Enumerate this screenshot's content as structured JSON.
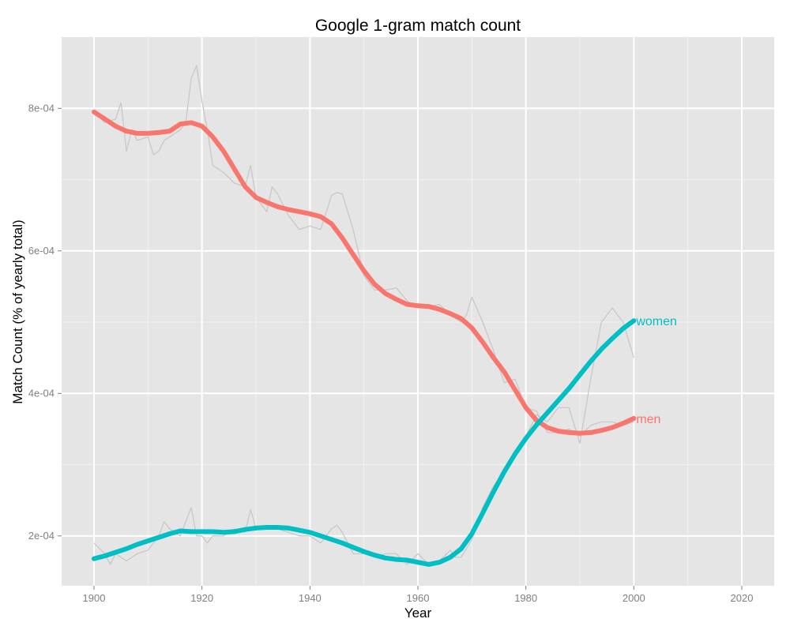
{
  "chart_data": {
    "type": "line",
    "title": "Google 1-gram match count",
    "xlabel": "Year",
    "ylabel": "Match Count (% of yearly total)",
    "xlim": [
      1894,
      2026
    ],
    "ylim": [
      0.00013,
      0.0009
    ],
    "x_ticks": [
      1900,
      1920,
      1940,
      1960,
      1980,
      2000,
      2020
    ],
    "x_tick_labels": [
      "1900",
      "1920",
      "1940",
      "1960",
      "1980",
      "2000",
      "2020"
    ],
    "y_ticks": [
      0.0002,
      0.0004,
      0.0006,
      0.0008
    ],
    "y_tick_labels": [
      "2e-04",
      "4e-04",
      "6e-04",
      "8e-04"
    ],
    "grid": true,
    "legend": "none",
    "colors": {
      "panel_background": "#e5e5e5",
      "grid_major": "#ffffff",
      "grid_minor": "#f2f2f2",
      "raw_line": "#c8c8c8",
      "men": "#f8766d",
      "women": "#00bfc4"
    },
    "raw_series": [
      {
        "group": "men",
        "x": [
          1900,
          1902,
          1904,
          1905,
          1906,
          1907,
          1908,
          1910,
          1911,
          1912,
          1913,
          1914,
          1916,
          1917,
          1918,
          1919,
          1920,
          1921,
          1922,
          1924,
          1926,
          1928,
          1929,
          1930,
          1932,
          1933,
          1934,
          1936,
          1938,
          1940,
          1942,
          1944,
          1945,
          1946,
          1948,
          1950,
          1952,
          1954,
          1956,
          1958,
          1960,
          1962,
          1964,
          1966,
          1968,
          1969,
          1970,
          1972,
          1974,
          1976,
          1978,
          1980,
          1982,
          1984,
          1986,
          1988,
          1990,
          1992,
          1994,
          1996,
          1998,
          2000
        ],
        "y": [
          0.000795,
          0.00078,
          0.000785,
          0.000808,
          0.00074,
          0.00077,
          0.000755,
          0.00076,
          0.000735,
          0.00074,
          0.000755,
          0.00076,
          0.00077,
          0.00078,
          0.000842,
          0.00086,
          0.00081,
          0.00077,
          0.00072,
          0.00071,
          0.000695,
          0.00069,
          0.00072,
          0.000675,
          0.000655,
          0.00069,
          0.00068,
          0.00065,
          0.00063,
          0.000635,
          0.00063,
          0.000678,
          0.000682,
          0.00068,
          0.00063,
          0.000565,
          0.000545,
          0.000545,
          0.000548,
          0.00053,
          0.00052,
          0.000522,
          0.000525,
          0.00051,
          0.0005,
          0.00051,
          0.000535,
          0.0005,
          0.00046,
          0.000415,
          0.00042,
          0.00038,
          0.000375,
          0.000345,
          0.000345,
          0.00035,
          0.00034,
          0.000355,
          0.00036,
          0.00036,
          0.000355,
          0.00036
        ]
      },
      {
        "group": "women",
        "x": [
          1900,
          1902,
          1903,
          1904,
          1906,
          1908,
          1910,
          1912,
          1913,
          1914,
          1916,
          1918,
          1919,
          1920,
          1921,
          1922,
          1924,
          1926,
          1928,
          1929,
          1930,
          1932,
          1934,
          1936,
          1938,
          1940,
          1942,
          1944,
          1945,
          1946,
          1948,
          1950,
          1952,
          1954,
          1956,
          1958,
          1960,
          1962,
          1964,
          1966,
          1967,
          1968,
          1970,
          1972,
          1974,
          1976,
          1978,
          1980,
          1982,
          1984,
          1986,
          1988,
          1990,
          1992,
          1994,
          1995,
          1996,
          1998,
          2000
        ],
        "y": [
          0.00019,
          0.000175,
          0.00016,
          0.000175,
          0.000165,
          0.000175,
          0.00018,
          0.0002,
          0.00022,
          0.00021,
          0.0002,
          0.00024,
          0.0002,
          0.0002,
          0.00019,
          0.0002,
          0.0002,
          0.00021,
          0.000205,
          0.000237,
          0.00021,
          0.000215,
          0.00021,
          0.000205,
          0.0002,
          0.0002,
          0.00019,
          0.00021,
          0.000215,
          0.000205,
          0.000175,
          0.000175,
          0.00017,
          0.000175,
          0.000175,
          0.00016,
          0.000175,
          0.00016,
          0.000165,
          0.00018,
          0.00017,
          0.00017,
          0.000195,
          0.00024,
          0.00027,
          0.00029,
          0.00031,
          0.00034,
          0.00037,
          0.00036,
          0.00038,
          0.00038,
          0.00033,
          0.00042,
          0.0005,
          0.00051,
          0.00052,
          0.0005,
          0.00045
        ]
      }
    ],
    "series": [
      {
        "name": "men",
        "color": "#f8766d",
        "x": [
          1900,
          1902,
          1904,
          1906,
          1908,
          1910,
          1912,
          1914,
          1916,
          1918,
          1920,
          1922,
          1924,
          1926,
          1928,
          1930,
          1932,
          1934,
          1936,
          1938,
          1940,
          1942,
          1944,
          1946,
          1948,
          1950,
          1952,
          1954,
          1956,
          1958,
          1960,
          1962,
          1964,
          1966,
          1968,
          1970,
          1972,
          1974,
          1976,
          1978,
          1980,
          1982,
          1984,
          1986,
          1988,
          1990,
          1992,
          1994,
          1996,
          1998,
          2000
        ],
        "y": [
          0.000795,
          0.000785,
          0.000775,
          0.000768,
          0.000765,
          0.000765,
          0.000766,
          0.000768,
          0.000778,
          0.00078,
          0.000775,
          0.00076,
          0.00074,
          0.000715,
          0.00069,
          0.000675,
          0.000668,
          0.000662,
          0.000658,
          0.000655,
          0.000652,
          0.000648,
          0.000638,
          0.000618,
          0.000595,
          0.000572,
          0.000553,
          0.00054,
          0.000532,
          0.000525,
          0.000523,
          0.000522,
          0.000518,
          0.000512,
          0.000505,
          0.000492,
          0.000472,
          0.00045,
          0.00043,
          0.000405,
          0.00038,
          0.000362,
          0.000352,
          0.000347,
          0.000345,
          0.000344,
          0.000345,
          0.000348,
          0.000352,
          0.000358,
          0.000365
        ]
      },
      {
        "name": "women",
        "color": "#00bfc4",
        "x": [
          1900,
          1902,
          1904,
          1906,
          1908,
          1910,
          1912,
          1914,
          1916,
          1918,
          1920,
          1922,
          1924,
          1926,
          1928,
          1930,
          1932,
          1934,
          1936,
          1938,
          1940,
          1942,
          1944,
          1946,
          1948,
          1950,
          1952,
          1954,
          1956,
          1958,
          1960,
          1962,
          1964,
          1966,
          1968,
          1970,
          1972,
          1974,
          1976,
          1978,
          1980,
          1982,
          1984,
          1986,
          1988,
          1990,
          1992,
          1994,
          1996,
          1998,
          2000
        ],
        "y": [
          0.000168,
          0.000172,
          0.000177,
          0.000182,
          0.000188,
          0.000193,
          0.000198,
          0.000203,
          0.000207,
          0.000206,
          0.000206,
          0.000206,
          0.000205,
          0.000206,
          0.000209,
          0.000211,
          0.000212,
          0.000212,
          0.000211,
          0.000208,
          0.000205,
          0.0002,
          0.000195,
          0.00019,
          0.000184,
          0.000178,
          0.000173,
          0.000169,
          0.000167,
          0.000166,
          0.000163,
          0.00016,
          0.000163,
          0.00017,
          0.000182,
          0.000203,
          0.000232,
          0.000262,
          0.00029,
          0.000315,
          0.000337,
          0.000356,
          0.000373,
          0.00039,
          0.000407,
          0.000426,
          0.000445,
          0.000462,
          0.000477,
          0.000491,
          0.000502
        ]
      }
    ]
  }
}
